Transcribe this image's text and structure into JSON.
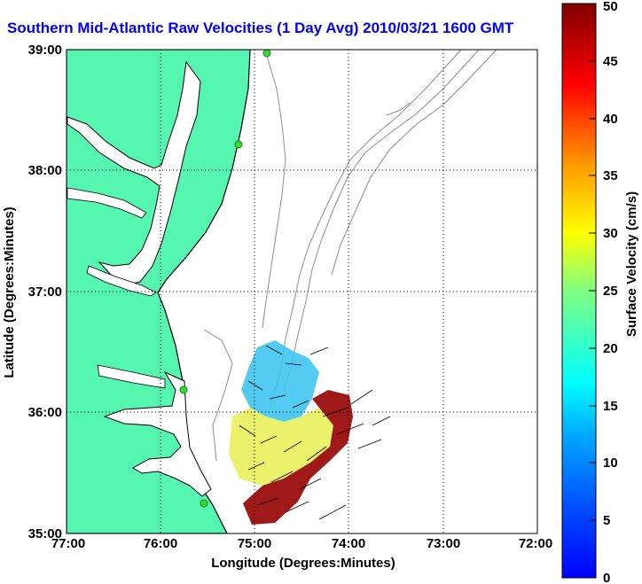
{
  "title": "Southern Mid-Atlantic Raw Velocities (1 Day Avg) 2010/03/21 1600 GMT",
  "axes": {
    "xlabel": "Longitude (Degrees:Minutes)",
    "ylabel": "Latitude (Degrees:Minutes)",
    "x_ticks": [
      "77:00",
      "76:00",
      "75:00",
      "74:00",
      "73:00",
      "72:00"
    ],
    "y_ticks": [
      "39:00",
      "38:00",
      "37:00",
      "36:00",
      "35:00"
    ],
    "lon_range": [
      -77,
      -72
    ],
    "lat_range": [
      35,
      39
    ]
  },
  "colorbar": {
    "label": "Surface Velocity (cm/s)",
    "ticks": [
      "0",
      "5",
      "10",
      "15",
      "20",
      "25",
      "30",
      "35",
      "40",
      "45",
      "50"
    ],
    "min": 0,
    "max": 50,
    "colormap": "jet"
  },
  "colors": {
    "land": "#55f7b0",
    "coast": "#000000",
    "bathymetry": "#8c8c8c",
    "station": "#33dd33",
    "title": "#0000ff"
  }
}
